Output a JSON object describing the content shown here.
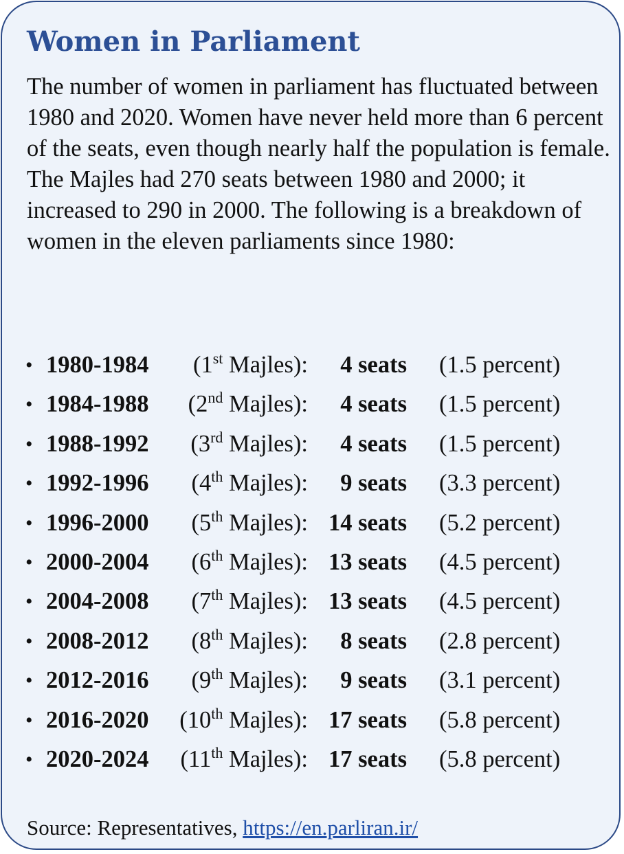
{
  "title": "Women in Parliament",
  "intro": "The number of women in parliament has fluctuated between 1980 and 2020. Women have never held more than 6 percent of the seats, even though nearly half the population is female. The Majles had 270 seats between 1980 and 2000; it increased to 290 in 2000. The following is a breakdown of women in the eleven parliaments since 1980:",
  "bullet": "•",
  "majles_word": "Majles):",
  "rows": [
    {
      "period": "1980-1984",
      "num": "1",
      "suffix": "st",
      "seats": "4 seats",
      "pct": "(1.5 percent)"
    },
    {
      "period": "1984-1988",
      "num": "2",
      "suffix": "nd",
      "seats": "4 seats",
      "pct": "(1.5 percent)"
    },
    {
      "period": "1988-1992",
      "num": "3",
      "suffix": "rd",
      "seats": "4 seats",
      "pct": "(1.5 percent)"
    },
    {
      "period": "1992-1996",
      "num": "4",
      "suffix": "th",
      "seats": "9 seats",
      "pct": "(3.3 percent)"
    },
    {
      "period": "1996-2000",
      "num": "5",
      "suffix": "th",
      "seats": "14 seats",
      "pct": "(5.2 percent)"
    },
    {
      "period": "2000-2004",
      "num": "6",
      "suffix": "th",
      "seats": "13 seats",
      "pct": "(4.5 percent)"
    },
    {
      "period": "2004-2008",
      "num": "7",
      "suffix": "th",
      "seats": "13 seats",
      "pct": "(4.5 percent)"
    },
    {
      "period": "2008-2012",
      "num": "8",
      "suffix": "th",
      "seats": "8 seats",
      "pct": "(2.8 percent)"
    },
    {
      "period": "2012-2016",
      "num": "9",
      "suffix": "th",
      "seats": "9 seats",
      "pct": "(3.1 percent)"
    },
    {
      "period": "2016-2020",
      "num": "10",
      "suffix": "th",
      "seats": "17 seats",
      "pct": "(5.8 percent)"
    },
    {
      "period": "2020-2024",
      "num": "11",
      "suffix": "th",
      "seats": "17 seats",
      "pct": "(5.8 percent)"
    }
  ],
  "source": {
    "label": "Source: Representatives,",
    "link": "https://en.parliran.ir/"
  },
  "colors": {
    "border": "#2c4a87",
    "title": "#2c4f95",
    "background": "#eef3fa",
    "link": "#1f4fa8"
  }
}
